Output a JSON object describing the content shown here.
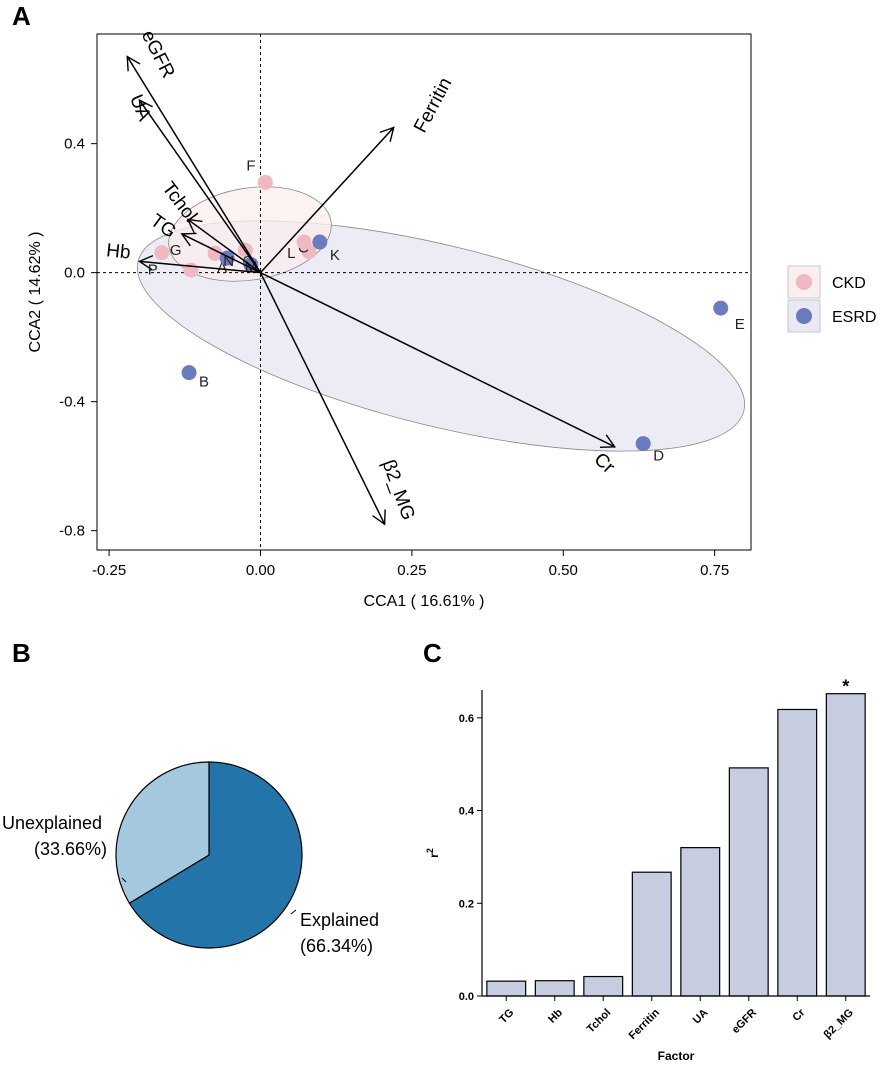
{
  "chart_data": [
    {
      "panel": "A",
      "type": "scatter",
      "xlabel": "CCA1 ( 16.61% )",
      "ylabel": "CCA2 ( 14.62% )",
      "xlim": [
        -0.27,
        0.81
      ],
      "ylim": [
        -0.86,
        0.74
      ],
      "xticks": [
        "-0.25",
        "0.00",
        "0.25",
        "0.50",
        "0.75"
      ],
      "xtick_values": [
        -0.25,
        0,
        0.25,
        0.5,
        0.75
      ],
      "yticks": [
        "0.4",
        "0.0",
        "-0.4",
        "-0.8"
      ],
      "ytick_values": [
        0.4,
        0,
        -0.4,
        -0.8
      ],
      "groups": [
        {
          "name": "CKD",
          "color": "#f0b8c0",
          "ellipse_fill": "#fbeeee"
        },
        {
          "name": "ESRD",
          "color": "#6a7bbf",
          "ellipse_fill": "#e9e9f3"
        }
      ],
      "points": [
        {
          "label": "A",
          "group": "CKD",
          "x": -0.075,
          "y": 0.06
        },
        {
          "label": "C",
          "group": "CKD",
          "x": 0.08,
          "y": 0.065
        },
        {
          "label": "F",
          "group": "CKD",
          "x": 0.008,
          "y": 0.28
        },
        {
          "label": "G",
          "group": "CKD",
          "x": -0.115,
          "y": 0.008
        },
        {
          "label": "L",
          "group": "CKD",
          "x": 0.072,
          "y": 0.095
        },
        {
          "label": "O",
          "group": "CKD",
          "x": -0.025,
          "y": 0.07
        },
        {
          "label": "P",
          "group": "CKD",
          "x": -0.163,
          "y": 0.062
        },
        {
          "label": "B",
          "group": "ESRD",
          "x": -0.118,
          "y": -0.31
        },
        {
          "label": "D",
          "group": "ESRD",
          "x": 0.632,
          "y": -0.53
        },
        {
          "label": "E",
          "group": "ESRD",
          "x": 0.76,
          "y": -0.11
        },
        {
          "label": "K",
          "group": "ESRD",
          "x": 0.098,
          "y": 0.095
        },
        {
          "label": "M",
          "group": "ESRD",
          "x": -0.016,
          "y": 0.025
        },
        {
          "label": "N",
          "group": "ESRD",
          "x": -0.055,
          "y": 0.045
        }
      ],
      "vectors": [
        {
          "name": "eGFR",
          "x": -0.22,
          "y": 0.67
        },
        {
          "name": "UA",
          "x": -0.2,
          "y": 0.535
        },
        {
          "name": "Ferritin",
          "x": 0.22,
          "y": 0.45
        },
        {
          "name": "Tchol",
          "x": -0.12,
          "y": 0.165
        },
        {
          "name": "TG",
          "x": -0.13,
          "y": 0.12
        },
        {
          "name": "Hb",
          "x": -0.2,
          "y": 0.035
        },
        {
          "name": "Cr",
          "x": 0.585,
          "y": -0.54
        },
        {
          "name": "β2_MG",
          "x": 0.205,
          "y": -0.78
        }
      ]
    },
    {
      "panel": "B",
      "type": "pie",
      "slices": [
        {
          "name": "Explained",
          "value": 66.34,
          "label": "Explained",
          "pct": "(66.34%)",
          "color": "#2274a9"
        },
        {
          "name": "Unexplained",
          "value": 33.66,
          "label": "Unexplained",
          "pct": "(33.66%)",
          "color": "#a4c8dd"
        }
      ]
    },
    {
      "panel": "C",
      "type": "bar",
      "xlabel": "Factor",
      "ylabel": "r",
      "ylabel_sup": "2",
      "ylim": [
        0,
        0.66
      ],
      "yticks": [
        "0.0",
        "0.2",
        "0.4",
        "0.6"
      ],
      "ytick_values": [
        0,
        0.2,
        0.4,
        0.6
      ],
      "categories": [
        "TG",
        "Hb",
        "Tchol",
        "Ferritin",
        "UA",
        "eGFR",
        "Cr",
        "β2_MG"
      ],
      "values": [
        0.032,
        0.033,
        0.042,
        0.267,
        0.32,
        0.492,
        0.618,
        0.652
      ],
      "significance": [
        "",
        "",
        "",
        "",
        "",
        "",
        "",
        "*"
      ],
      "bar_color": "#c6cde0"
    }
  ],
  "panels": {
    "a": "A",
    "b": "B",
    "c": "C"
  },
  "legend": {
    "ckd": "CKD",
    "esrd": "ESRD"
  }
}
